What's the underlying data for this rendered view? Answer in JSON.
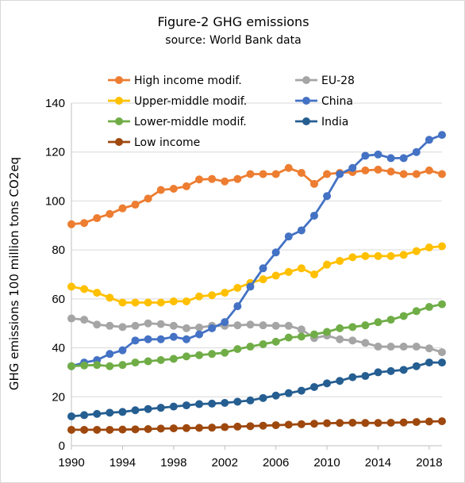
{
  "chart_data": {
    "type": "line",
    "title": "Figure-2  GHG emissions",
    "subtitle": "source: World Bank data",
    "ylabel": "GHG emissions       100 million tons CO2eq",
    "xlabel": "",
    "x": [
      1990,
      1991,
      1992,
      1993,
      1994,
      1995,
      1996,
      1997,
      1998,
      1999,
      2000,
      2001,
      2002,
      2003,
      2004,
      2005,
      2006,
      2007,
      2008,
      2009,
      2010,
      2011,
      2012,
      2013,
      2014,
      2015,
      2016,
      2017,
      2018,
      2019
    ],
    "xticks": [
      "1990",
      "1994",
      "1998",
      "2002",
      "2006",
      "2010",
      "2014",
      "2018"
    ],
    "ylim": [
      0,
      140
    ],
    "yticks": [
      "0",
      "20",
      "40",
      "60",
      "80",
      "100",
      "120",
      "140"
    ],
    "grid": true,
    "legend_position": "top",
    "series": [
      {
        "name": "High income modif.",
        "color": "#ED7D31",
        "values": [
          90.5,
          91,
          93,
          94.7,
          97,
          98.5,
          101,
          104.5,
          105,
          106,
          108.8,
          109,
          108,
          109,
          111,
          111,
          111,
          113.5,
          111.5,
          107,
          111,
          111.5,
          111.8,
          112.5,
          112.8,
          112,
          111,
          111,
          112.5,
          111
        ]
      },
      {
        "name": "EU-28",
        "color": "#A5A5A5",
        "values": [
          52,
          51.5,
          49.5,
          49,
          48.5,
          49,
          50,
          49.7,
          49,
          48,
          48.3,
          49,
          49,
          49.2,
          49.5,
          49.2,
          49,
          49,
          47.5,
          44,
          45,
          43.5,
          43,
          42,
          40.5,
          40.5,
          40.5,
          40.5,
          39.8,
          38.2
        ]
      },
      {
        "name": "Upper-middle modif.",
        "color": "#FFC000",
        "values": [
          65,
          64,
          62.5,
          60.5,
          58.5,
          58.5,
          58.5,
          58.5,
          59,
          59,
          61,
          61.5,
          62.5,
          64.5,
          66.5,
          68,
          69.5,
          71,
          72.5,
          70,
          74,
          75.5,
          77,
          77.5,
          77.5,
          77.5,
          78,
          79.5,
          81,
          81.5
        ]
      },
      {
        "name": "China",
        "color": "#4472C4",
        "values": [
          32.5,
          34,
          35,
          37.5,
          39,
          43,
          43.5,
          43.5,
          44.5,
          43.5,
          45.5,
          48,
          50.5,
          57,
          65,
          72.5,
          79,
          85.5,
          88,
          94,
          102,
          111,
          113.5,
          118.5,
          119,
          117.5,
          117.5,
          120,
          125,
          127
        ]
      },
      {
        "name": "Lower-middle modif.",
        "color": "#70AD47",
        "values": [
          32.5,
          32.8,
          33,
          32.5,
          33,
          34,
          34.5,
          35,
          35.5,
          36.5,
          37,
          37.5,
          38,
          39.5,
          40.5,
          41.5,
          42.5,
          44.2,
          44.6,
          45.5,
          46.5,
          48,
          48.5,
          49.2,
          50.5,
          51.5,
          53,
          55,
          56.7,
          57.8
        ]
      },
      {
        "name": "India",
        "color": "#255E91",
        "values": [
          12,
          12.5,
          13,
          13.5,
          13.8,
          14.5,
          15,
          15.5,
          16,
          16.5,
          17,
          17.2,
          17.5,
          18,
          18.5,
          19.5,
          20.5,
          21.5,
          22.5,
          24,
          25.5,
          26.5,
          28,
          28.5,
          30,
          30.5,
          31,
          32.5,
          34,
          34
        ]
      },
      {
        "name": "Low income",
        "color": "#9E480E",
        "values": [
          6.5,
          6.5,
          6.5,
          6.5,
          6.6,
          6.7,
          6.8,
          7,
          7.1,
          7.2,
          7.3,
          7.4,
          7.6,
          7.8,
          8,
          8.2,
          8.4,
          8.6,
          8.8,
          9,
          9.2,
          9.3,
          9.4,
          9.3,
          9.3,
          9.4,
          9.5,
          9.7,
          9.9,
          10
        ]
      }
    ]
  }
}
